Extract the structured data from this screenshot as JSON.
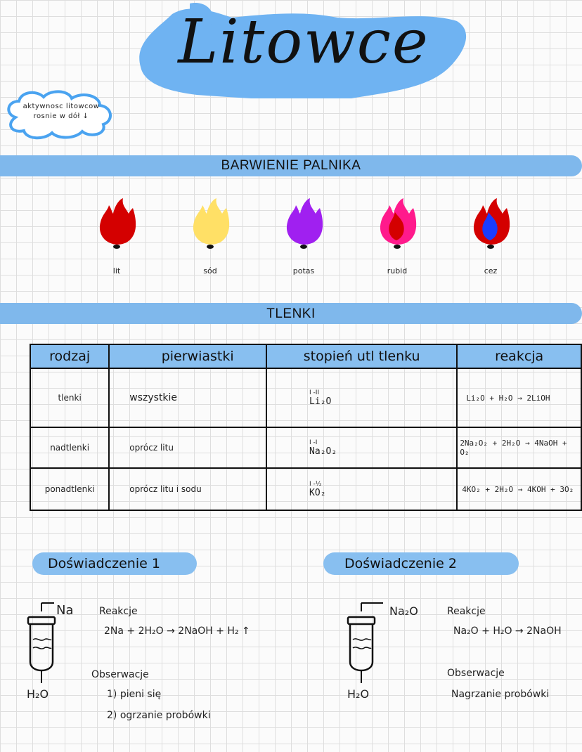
{
  "title": "Litowce",
  "note": {
    "line1": "aktywnosc litowcow",
    "line2": "rosnie w dół ↓"
  },
  "flame_section": {
    "heading": "BARWIENIE PALNIKA",
    "flames": [
      {
        "label": "lit",
        "color": "#d40000",
        "inner": ""
      },
      {
        "label": "sód",
        "color": "#ffe066",
        "inner": ""
      },
      {
        "label": "potas",
        "color": "#a020f0",
        "inner": ""
      },
      {
        "label": "rubid",
        "color": "#ff1a8c",
        "inner": "#d40000"
      },
      {
        "label": "cez",
        "color": "#d40000",
        "inner": "#1a3cff"
      }
    ]
  },
  "oxides_section": {
    "heading": "TLENKI",
    "columns": [
      "rodzaj",
      "pierwiastki",
      "stopień utl tlenku",
      "reakcja"
    ],
    "rows": [
      {
        "type": "tlenki",
        "elements": "wszystkie",
        "ox_states": "I  -II",
        "oxide": "Li₂O",
        "reaction": "Li₂O + H₂O → 2LiOH"
      },
      {
        "type": "nadtlenki",
        "elements": "oprócz litu",
        "ox_states": "I  -I",
        "oxide": "Na₂O₂",
        "reaction": "2Na₂O₂ + 2H₂O → 4NaOH + O₂"
      },
      {
        "type": "ponadtlenki",
        "elements": "oprócz litu i sodu",
        "ox_states": "I  -½",
        "oxide": "KO₂",
        "reaction": "4KO₂ + 2H₂O → 4KOH + 3O₂"
      }
    ]
  },
  "experiment1": {
    "heading": "Doświadczenie 1",
    "reagent": "Na",
    "liquid": "H₂O",
    "reactions_label": "Reakcje",
    "equation": "2Na + 2H₂O → 2NaOH + H₂ ↑",
    "observations_label": "Obserwacje",
    "observations": [
      "1)  pieni się",
      "2)  ogrzanie probówki"
    ]
  },
  "experiment2": {
    "heading": "Doświadczenie 2",
    "reagent": "Na₂O",
    "liquid": "H₂O",
    "reactions_label": "Reakcje",
    "equation": "Na₂O + H₂O → 2NaOH",
    "observations_label": "Obserwacje",
    "observations": [
      "Nagrzanie probówki"
    ]
  },
  "colors": {
    "accent": "#88bff0",
    "title_blob": "#6fb3f2"
  }
}
